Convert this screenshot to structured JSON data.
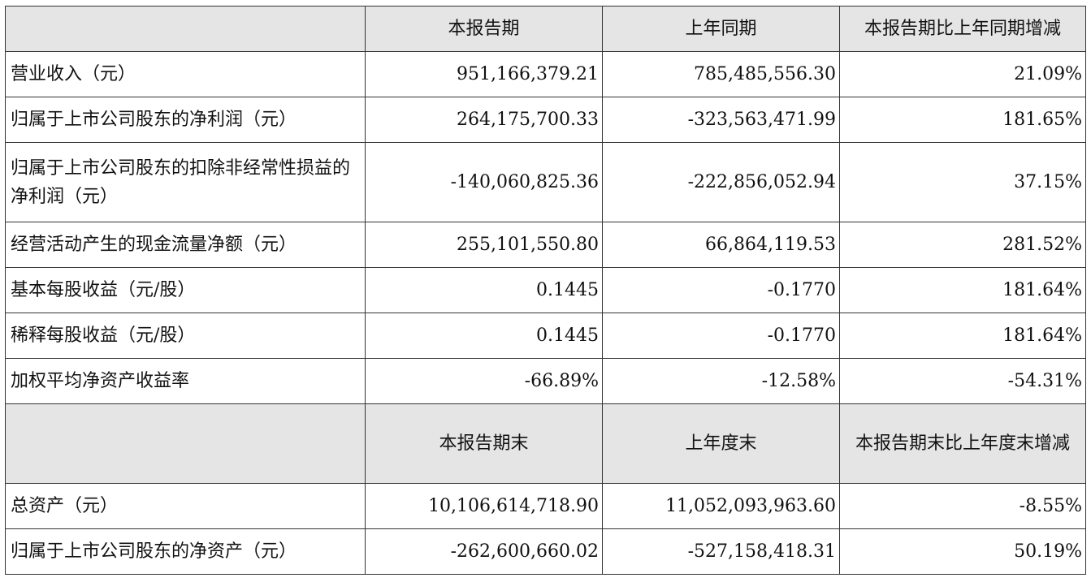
{
  "header1": {
    "c0": "",
    "c1": "本报告期",
    "c2": "上年同期",
    "c3": "本报告期比上年同期增减"
  },
  "rows1": [
    {
      "label": "营业收入（元）",
      "current": "951,166,379.21",
      "prior": "785,485,556.30",
      "change": "21.09%"
    },
    {
      "label": "归属于上市公司股东的净利润（元）",
      "current": "264,175,700.33",
      "prior": "-323,563,471.99",
      "change": "181.65%"
    },
    {
      "label": "归属于上市公司股东的扣除非经常性损益的净利润（元）",
      "current": "-140,060,825.36",
      "prior": "-222,856,052.94",
      "change": "37.15%"
    },
    {
      "label": "经营活动产生的现金流量净额（元）",
      "current": "255,101,550.80",
      "prior": "66,864,119.53",
      "change": "281.52%"
    },
    {
      "label": "基本每股收益（元/股）",
      "current": "0.1445",
      "prior": "-0.1770",
      "change": "181.64%"
    },
    {
      "label": "稀释每股收益（元/股）",
      "current": "0.1445",
      "prior": "-0.1770",
      "change": "181.64%"
    },
    {
      "label": "加权平均净资产收益率",
      "current": "-66.89%",
      "prior": "-12.58%",
      "change": "-54.31%"
    }
  ],
  "header2": {
    "c0": "",
    "c1": "本报告期末",
    "c2": "上年度末",
    "c3": "本报告期末比上年度末增减"
  },
  "rows2": [
    {
      "label": "总资产（元）",
      "current": "10,106,614,718.90",
      "prior": "11,052,093,963.60",
      "change": "-8.55%"
    },
    {
      "label": "归属于上市公司股东的净资产（元）",
      "current": "-262,600,660.02",
      "prior": "-527,158,418.31",
      "change": "50.19%"
    }
  ]
}
